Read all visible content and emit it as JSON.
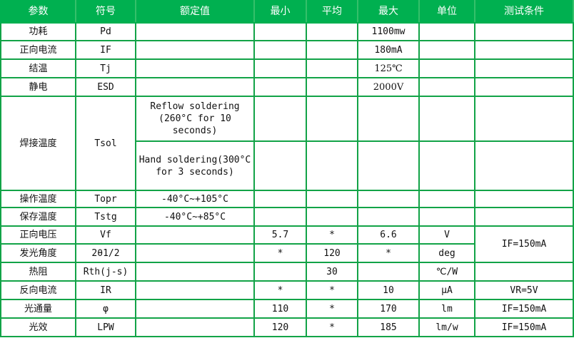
{
  "header": [
    "参数",
    "符号",
    "额定值",
    "最小",
    "平均",
    "最大",
    "单位",
    "测试条件"
  ],
  "rows": [
    {
      "param": "功耗",
      "symbol": "Pd",
      "rated": "",
      "min": "",
      "avg": "",
      "max": "1100mw",
      "unit": "",
      "cond": ""
    },
    {
      "param": "正向电流",
      "symbol": "IF",
      "rated": "",
      "min": "",
      "avg": "",
      "max": "180mA",
      "unit": "",
      "cond": ""
    },
    {
      "param": "结温",
      "symbol": "Tj",
      "rated": "",
      "min": "",
      "avg": "",
      "max": "125℃",
      "unit": "",
      "cond": ""
    },
    {
      "param": "静电",
      "symbol": "ESD",
      "rated": "",
      "min": "",
      "avg": "",
      "max": "2000V",
      "unit": "",
      "cond": ""
    },
    {
      "param": "焊接温度",
      "symbol": "Tsol",
      "rated": "Reflow soldering\n(260°C for 10\nseconds)",
      "min": "",
      "avg": "",
      "max": "",
      "unit": "",
      "cond": ""
    },
    {
      "rated": "Hand soldering(300°C\nfor 3 seconds)",
      "min": "",
      "avg": "",
      "max": "",
      "unit": "",
      "cond": ""
    },
    {
      "param": "操作温度",
      "symbol": "Topr",
      "rated": "-40°C~+105°C",
      "min": "",
      "avg": "",
      "max": "",
      "unit": "",
      "cond": ""
    },
    {
      "param": "保存温度",
      "symbol": "Tstg",
      "rated": "-40°C~+85°C",
      "min": "",
      "avg": "",
      "max": "",
      "unit": "",
      "cond": ""
    },
    {
      "param": "正向电压",
      "symbol": "Vf",
      "rated": "",
      "min": "5.7",
      "avg": "*",
      "max": "6.6",
      "unit": "V",
      "cond": "IF=150mA"
    },
    {
      "param": "发光角度",
      "symbol": "2θ1/2",
      "rated": "",
      "min": "*",
      "avg": "120",
      "max": "*",
      "unit": "deg"
    },
    {
      "param": "热阻",
      "symbol": "Rth(j-s)",
      "rated": "",
      "min": "",
      "avg": "30",
      "max": "",
      "unit": "℃/W",
      "cond": ""
    },
    {
      "param": "反向电流",
      "symbol": "IR",
      "rated": "",
      "min": "*",
      "avg": "*",
      "max": "10",
      "unit": "μA",
      "cond": "VR=5V"
    },
    {
      "param": "光通量",
      "symbol": "φ",
      "rated": "",
      "min": "110",
      "avg": "*",
      "max": "170",
      "unit": "lm",
      "cond": "IF=150mA"
    },
    {
      "param": "光效",
      "symbol": "LPW",
      "rated": "",
      "min": "120",
      "avg": "*",
      "max": "185",
      "unit": "lm/w",
      "cond": "IF=150mA"
    }
  ],
  "colors": {
    "header_bg": "#00b050",
    "border": "#12a347"
  }
}
